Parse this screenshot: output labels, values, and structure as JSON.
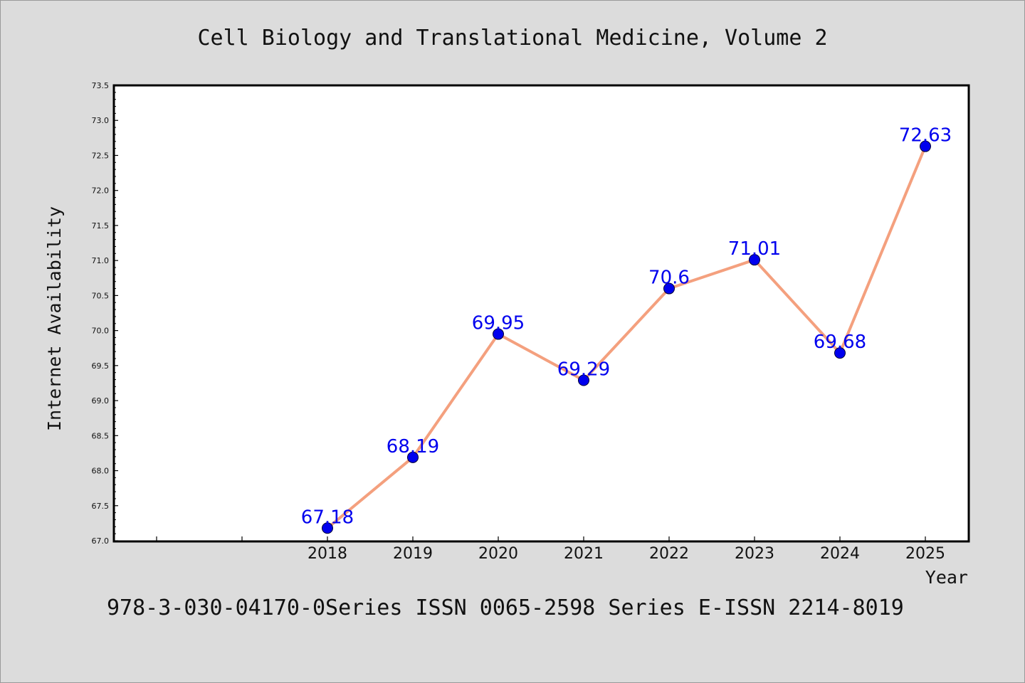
{
  "chart_data": {
    "type": "line",
    "title": "Cell Biology and Translational Medicine, Volume 2",
    "xlabel": "Year",
    "ylabel": "Internet Availability",
    "x_slots": 10,
    "categories": [
      "2018",
      "2019",
      "2020",
      "2021",
      "2022",
      "2023",
      "2024",
      "2025"
    ],
    "values": [
      67.18,
      68.19,
      69.95,
      69.29,
      70.6,
      71.01,
      69.68,
      72.63
    ],
    "data_labels": [
      "67.18",
      "68.19",
      "69.95",
      "69.29",
      "70.6",
      "71.01",
      "69.68",
      "72.63"
    ],
    "yticks": [
      "67.0",
      "67.5",
      "68.0",
      "68.5",
      "69.0",
      "69.5",
      "70.0",
      "70.5",
      "71.0",
      "71.5",
      "72.0",
      "72.5",
      "73.0",
      "73.5"
    ],
    "ylim": [
      67.0,
      73.5
    ],
    "grid": false,
    "legend": "none",
    "colors": {
      "line": "#f4a07e",
      "marker": "#0000ee",
      "label": "#0000ee",
      "background": "#dcdcdc",
      "plot_background": "#ffffff"
    }
  },
  "footer": "978-3-030-04170-0Series ISSN 0065-2598 Series E-ISSN 2214-8019"
}
